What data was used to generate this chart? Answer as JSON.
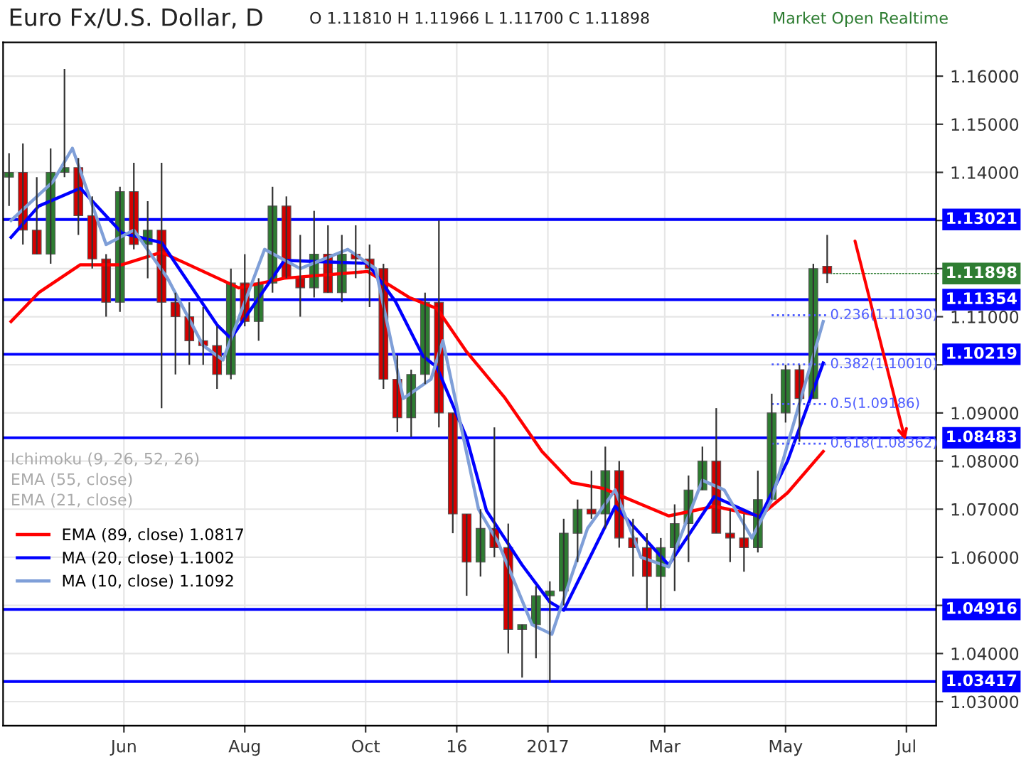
{
  "chart_data": {
    "type": "candlestick",
    "title": "Euro Fx/U.S. Dollar, D",
    "annotations": [
      "O 1.11810 H 1.11966 L 1.11700 C 1.11898",
      "Market Open Realtime",
      "Ichimoku (9, 26, 52, 26)",
      "EMA (55, close)",
      "EMA (21, close)",
      {
        "text": "1.11898",
        "x": "2017-05-22",
        "y": 1.11898
      }
    ],
    "x": [
      "2016-04-04",
      "2016-04-11",
      "2016-04-18",
      "2016-04-25",
      "2016-05-02",
      "2016-05-09",
      "2016-05-16",
      "2016-05-23",
      "2016-05-30",
      "2016-06-06",
      "2016-06-13",
      "2016-06-20",
      "2016-06-27",
      "2016-07-04",
      "2016-07-11",
      "2016-07-18",
      "2016-07-25",
      "2016-08-01",
      "2016-08-08",
      "2016-08-15",
      "2016-08-22",
      "2016-08-29",
      "2016-09-05",
      "2016-09-12",
      "2016-09-19",
      "2016-09-26",
      "2016-10-03",
      "2016-10-10",
      "2016-10-17",
      "2016-10-24",
      "2016-10-31",
      "2016-11-07",
      "2016-11-14",
      "2016-11-21",
      "2016-11-28",
      "2016-12-05",
      "2016-12-12",
      "2016-12-19",
      "2016-12-26",
      "2017-01-02",
      "2017-01-09",
      "2017-01-16",
      "2017-01-23",
      "2017-01-30",
      "2017-02-06",
      "2017-02-13",
      "2017-02-20",
      "2017-02-27",
      "2017-03-06",
      "2017-03-13",
      "2017-03-20",
      "2017-03-27",
      "2017-04-03",
      "2017-04-10",
      "2017-04-17",
      "2017-04-24",
      "2017-05-01",
      "2017-05-08",
      "2017-05-15",
      "2017-05-22"
    ],
    "ohlc": [
      [
        1.139,
        1.144,
        1.133,
        1.14
      ],
      [
        1.14,
        1.146,
        1.125,
        1.128
      ],
      [
        1.128,
        1.139,
        1.123,
        1.123
      ],
      [
        1.123,
        1.145,
        1.121,
        1.14
      ],
      [
        1.14,
        1.1615,
        1.139,
        1.141
      ],
      [
        1.141,
        1.143,
        1.127,
        1.131
      ],
      [
        1.131,
        1.135,
        1.12,
        1.122
      ],
      [
        1.122,
        1.123,
        1.11,
        1.113
      ],
      [
        1.113,
        1.137,
        1.111,
        1.136
      ],
      [
        1.136,
        1.142,
        1.124,
        1.125
      ],
      [
        1.125,
        1.134,
        1.118,
        1.128
      ],
      [
        1.128,
        1.142,
        1.091,
        1.113
      ],
      [
        1.113,
        1.115,
        1.098,
        1.11
      ],
      [
        1.11,
        1.113,
        1.1,
        1.105
      ],
      [
        1.105,
        1.112,
        1.1,
        1.104
      ],
      [
        1.104,
        1.108,
        1.095,
        1.098
      ],
      [
        1.098,
        1.12,
        1.097,
        1.117
      ],
      [
        1.117,
        1.123,
        1.108,
        1.109
      ],
      [
        1.109,
        1.118,
        1.105,
        1.117
      ],
      [
        1.117,
        1.137,
        1.115,
        1.133
      ],
      [
        1.133,
        1.135,
        1.118,
        1.118
      ],
      [
        1.118,
        1.127,
        1.11,
        1.116
      ],
      [
        1.116,
        1.132,
        1.114,
        1.123
      ],
      [
        1.123,
        1.129,
        1.115,
        1.115
      ],
      [
        1.115,
        1.127,
        1.113,
        1.123
      ],
      [
        1.123,
        1.129,
        1.118,
        1.122
      ],
      [
        1.122,
        1.125,
        1.112,
        1.12
      ],
      [
        1.12,
        1.121,
        1.095,
        1.097
      ],
      [
        1.097,
        1.102,
        1.086,
        1.089
      ],
      [
        1.089,
        1.099,
        1.085,
        1.098
      ],
      [
        1.098,
        1.115,
        1.096,
        1.113
      ],
      [
        1.113,
        1.13,
        1.087,
        1.09
      ],
      [
        1.09,
        1.09,
        1.065,
        1.069
      ],
      [
        1.069,
        1.069,
        1.052,
        1.059
      ],
      [
        1.059,
        1.07,
        1.056,
        1.066
      ],
      [
        1.066,
        1.087,
        1.06,
        1.062
      ],
      [
        1.062,
        1.067,
        1.04,
        1.045
      ],
      [
        1.045,
        1.046,
        1.035,
        1.046
      ],
      [
        1.046,
        1.054,
        1.039,
        1.052
      ],
      [
        1.052,
        1.055,
        1.034,
        1.053
      ],
      [
        1.053,
        1.068,
        1.05,
        1.065
      ],
      [
        1.065,
        1.072,
        1.059,
        1.07
      ],
      [
        1.07,
        1.078,
        1.068,
        1.069
      ],
      [
        1.069,
        1.083,
        1.066,
        1.078
      ],
      [
        1.078,
        1.08,
        1.062,
        1.064
      ],
      [
        1.064,
        1.068,
        1.056,
        1.062
      ],
      [
        1.062,
        1.065,
        1.049,
        1.056
      ],
      [
        1.056,
        1.064,
        1.049,
        1.062
      ],
      [
        1.062,
        1.071,
        1.053,
        1.067
      ],
      [
        1.067,
        1.077,
        1.059,
        1.074
      ],
      [
        1.074,
        1.083,
        1.074,
        1.08
      ],
      [
        1.08,
        1.091,
        1.065,
        1.065
      ],
      [
        1.065,
        1.07,
        1.059,
        1.064
      ],
      [
        1.064,
        1.069,
        1.057,
        1.062
      ],
      [
        1.062,
        1.078,
        1.061,
        1.072
      ],
      [
        1.072,
        1.094,
        1.072,
        1.09
      ],
      [
        1.09,
        1.1,
        1.088,
        1.099
      ],
      [
        1.099,
        1.1,
        1.084,
        1.093
      ],
      [
        1.093,
        1.121,
        1.093,
        1.12
      ],
      [
        1.1205,
        1.127,
        1.117,
        1.11898
      ]
    ],
    "series": [
      {
        "name": "EMA (89, close) 1.0817",
        "type": "line",
        "color": "#ff0000",
        "x": [
          "2016-04-05",
          "2016-04-19",
          "2016-05-10",
          "2016-05-31",
          "2016-06-20",
          "2016-07-29",
          "2016-08-21",
          "2016-10-02",
          "2016-10-23",
          "2016-11-06",
          "2016-11-21",
          "2016-12-10",
          "2016-12-29",
          "2017-01-13",
          "2017-01-29",
          "2017-03-03",
          "2017-03-26",
          "2017-04-18",
          "2017-05-02",
          "2017-05-20"
        ],
        "values": [
          1.109,
          1.115,
          1.1208,
          1.1208,
          1.1234,
          1.116,
          1.118,
          1.1194,
          1.114,
          1.1117,
          1.1027,
          1.0933,
          1.082,
          1.0755,
          1.0743,
          1.0686,
          1.0706,
          1.0686,
          1.0734,
          1.082
        ]
      },
      {
        "name": "MA (20, close) 1.1002",
        "type": "line",
        "color": "#0000ff",
        "x": [
          "2016-04-05",
          "2016-04-19",
          "2016-05-10",
          "2016-05-31",
          "2016-06-20",
          "2016-07-18",
          "2016-07-25",
          "2016-08-21",
          "2016-10-02",
          "2016-10-16",
          "2016-10-30",
          "2016-11-06",
          "2016-11-21",
          "2016-12-01",
          "2016-12-19",
          "2017-01-02",
          "2017-01-09",
          "2017-02-04",
          "2017-03-03",
          "2017-03-26",
          "2017-04-18",
          "2017-05-02",
          "2017-05-20"
        ],
        "values": [
          1.1265,
          1.133,
          1.1367,
          1.1274,
          1.1254,
          1.1083,
          1.1055,
          1.1217,
          1.1211,
          1.1132,
          1.1018,
          1.0995,
          1.0848,
          1.0697,
          1.0584,
          1.0507,
          1.049,
          1.0706,
          1.0584,
          1.0726,
          1.0683,
          1.08,
          1.1004
        ]
      },
      {
        "name": "MA (10, close) 1.1092",
        "type": "line",
        "color": "#7f9fd8",
        "x": [
          "2016-04-05",
          "2016-04-26",
          "2016-05-06",
          "2016-05-23",
          "2016-06-06",
          "2016-06-23",
          "2016-07-11",
          "2016-07-21",
          "2016-08-11",
          "2016-08-29",
          "2016-09-22",
          "2016-10-06",
          "2016-10-20",
          "2016-11-03",
          "2016-11-09",
          "2016-11-27",
          "2016-12-07",
          "2016-12-24",
          "2017-01-03",
          "2017-01-21",
          "2017-02-04",
          "2017-02-17",
          "2017-03-03",
          "2017-03-20",
          "2017-03-31",
          "2017-04-14",
          "2017-04-24",
          "2017-05-08",
          "2017-05-20"
        ],
        "values": [
          1.13,
          1.138,
          1.145,
          1.125,
          1.128,
          1.118,
          1.104,
          1.101,
          1.124,
          1.12,
          1.124,
          1.12,
          1.093,
          1.097,
          1.105,
          1.07,
          1.063,
          1.046,
          1.044,
          1.066,
          1.074,
          1.06,
          1.058,
          1.076,
          1.074,
          1.064,
          1.072,
          1.092,
          1.109
        ]
      },
      {
        "name": "0.236(1.11030)",
        "type": "line",
        "line_style": "dotted",
        "color": "#4d5cff",
        "x": [
          "2017-04-24",
          "2017-05-22"
        ],
        "values": [
          1.1103,
          1.1103
        ]
      },
      {
        "name": "0.382(1.10010)",
        "type": "line",
        "line_style": "dotted",
        "color": "#4d5cff",
        "x": [
          "2017-04-24",
          "2017-05-22"
        ],
        "values": [
          1.1001,
          1.1001
        ]
      },
      {
        "name": "0.5(1.09186)",
        "type": "line",
        "line_style": "dotted",
        "color": "#4d5cff",
        "x": [
          "2017-04-24",
          "2017-05-22"
        ],
        "values": [
          1.09186,
          1.09186
        ]
      },
      {
        "name": "0.618(1.08362)",
        "type": "line",
        "line_style": "dotted",
        "color": "#4d5cff",
        "x": [
          "2017-04-24",
          "2017-05-22"
        ],
        "values": [
          1.08362,
          1.08362
        ]
      }
    ],
    "ref_lines": [
      {
        "axis": "y",
        "value": 1.13021,
        "label": "1.13021",
        "color": "#0000ff"
      },
      {
        "axis": "y",
        "value": 1.11354,
        "label": "1.11354",
        "color": "#0000ff"
      },
      {
        "axis": "y",
        "value": 1.10219,
        "label": "1.10219",
        "color": "#0000ff"
      },
      {
        "axis": "y",
        "value": 1.08483,
        "label": "1.08483",
        "color": "#0000ff"
      },
      {
        "axis": "y",
        "value": 1.04916,
        "label": "1.04916",
        "color": "#0000ff"
      },
      {
        "axis": "y",
        "value": 1.03417,
        "label": "1.03417",
        "color": "#0000ff"
      }
    ],
    "xlim": [
      "2016-04-01",
      "2017-07-16"
    ],
    "xticks": [
      {
        "value": "2016-06-01",
        "label": "Jun"
      },
      {
        "value": "2016-08-01",
        "label": "Aug"
      },
      {
        "value": "2016-10-01",
        "label": "Oct"
      },
      {
        "value": "2016-11-16",
        "label": "16"
      },
      {
        "value": "2017-01-01",
        "label": "2017"
      },
      {
        "value": "2017-03-01",
        "label": "Mar"
      },
      {
        "value": "2017-05-01",
        "label": "May"
      },
      {
        "value": "2017-07-01",
        "label": "Jul"
      }
    ],
    "ylim": [
      1.025,
      1.167
    ],
    "yticks": [
      {
        "value": 1.03,
        "label": "1.03000"
      },
      {
        "value": 1.04,
        "label": "1.04000"
      },
      {
        "value": 1.05,
        "label": null
      },
      {
        "value": 1.06,
        "label": "1.06000"
      },
      {
        "value": 1.07,
        "label": "1.07000"
      },
      {
        "value": 1.08,
        "label": "1.08000"
      },
      {
        "value": 1.09,
        "label": "1.09000"
      },
      {
        "value": 1.1,
        "label": null
      },
      {
        "value": 1.11,
        "label": "1.11000"
      },
      {
        "value": 1.12,
        "label": null
      },
      {
        "value": 1.13,
        "label": null
      },
      {
        "value": 1.14,
        "label": "1.14000"
      },
      {
        "value": 1.15,
        "label": "1.15000"
      },
      {
        "value": 1.16,
        "label": "1.16000"
      }
    ],
    "grid": true,
    "legend": "left"
  }
}
